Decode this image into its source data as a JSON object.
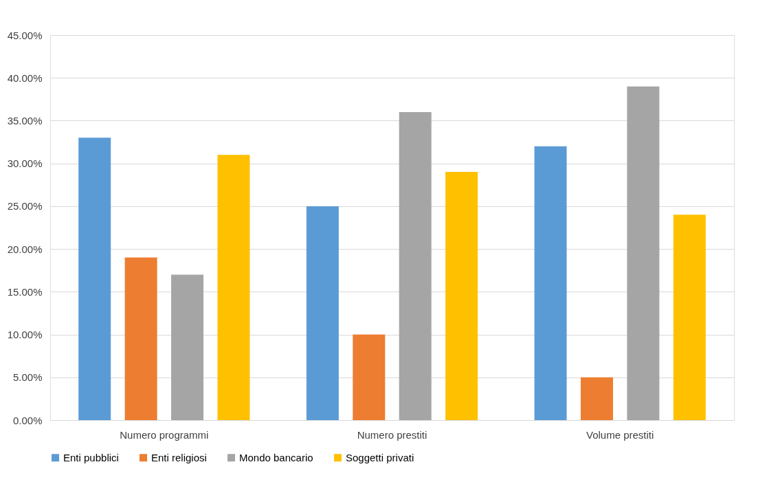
{
  "chart_data": {
    "type": "bar",
    "categories": [
      "Numero programmi",
      "Numero prestiti",
      "Volume prestiti"
    ],
    "series": [
      {
        "name": "Enti pubblici",
        "color": "#5b9bd5",
        "values": [
          33,
          25,
          32
        ]
      },
      {
        "name": "Enti religiosi",
        "color": "#ed7d31",
        "values": [
          19,
          10,
          5
        ]
      },
      {
        "name": "Mondo bancario",
        "color": "#a5a5a5",
        "values": [
          17,
          36,
          39
        ]
      },
      {
        "name": "Soggetti privati",
        "color": "#ffc000",
        "values": [
          31,
          29,
          24
        ]
      }
    ],
    "ylim": [
      0,
      45
    ],
    "yticks": [
      {
        "value": 0,
        "label": "0.00%"
      },
      {
        "value": 5,
        "label": "5.00%"
      },
      {
        "value": 10,
        "label": "10.00%"
      },
      {
        "value": 15,
        "label": "15.00%"
      },
      {
        "value": 20,
        "label": "20.00%"
      },
      {
        "value": 25,
        "label": "25.00%"
      },
      {
        "value": 30,
        "label": "30.00%"
      },
      {
        "value": 35,
        "label": "35.00%"
      },
      {
        "value": 40,
        "label": "40.00%"
      },
      {
        "value": 45,
        "label": "45.00%"
      }
    ],
    "grid": "y",
    "legend": "bottom"
  }
}
